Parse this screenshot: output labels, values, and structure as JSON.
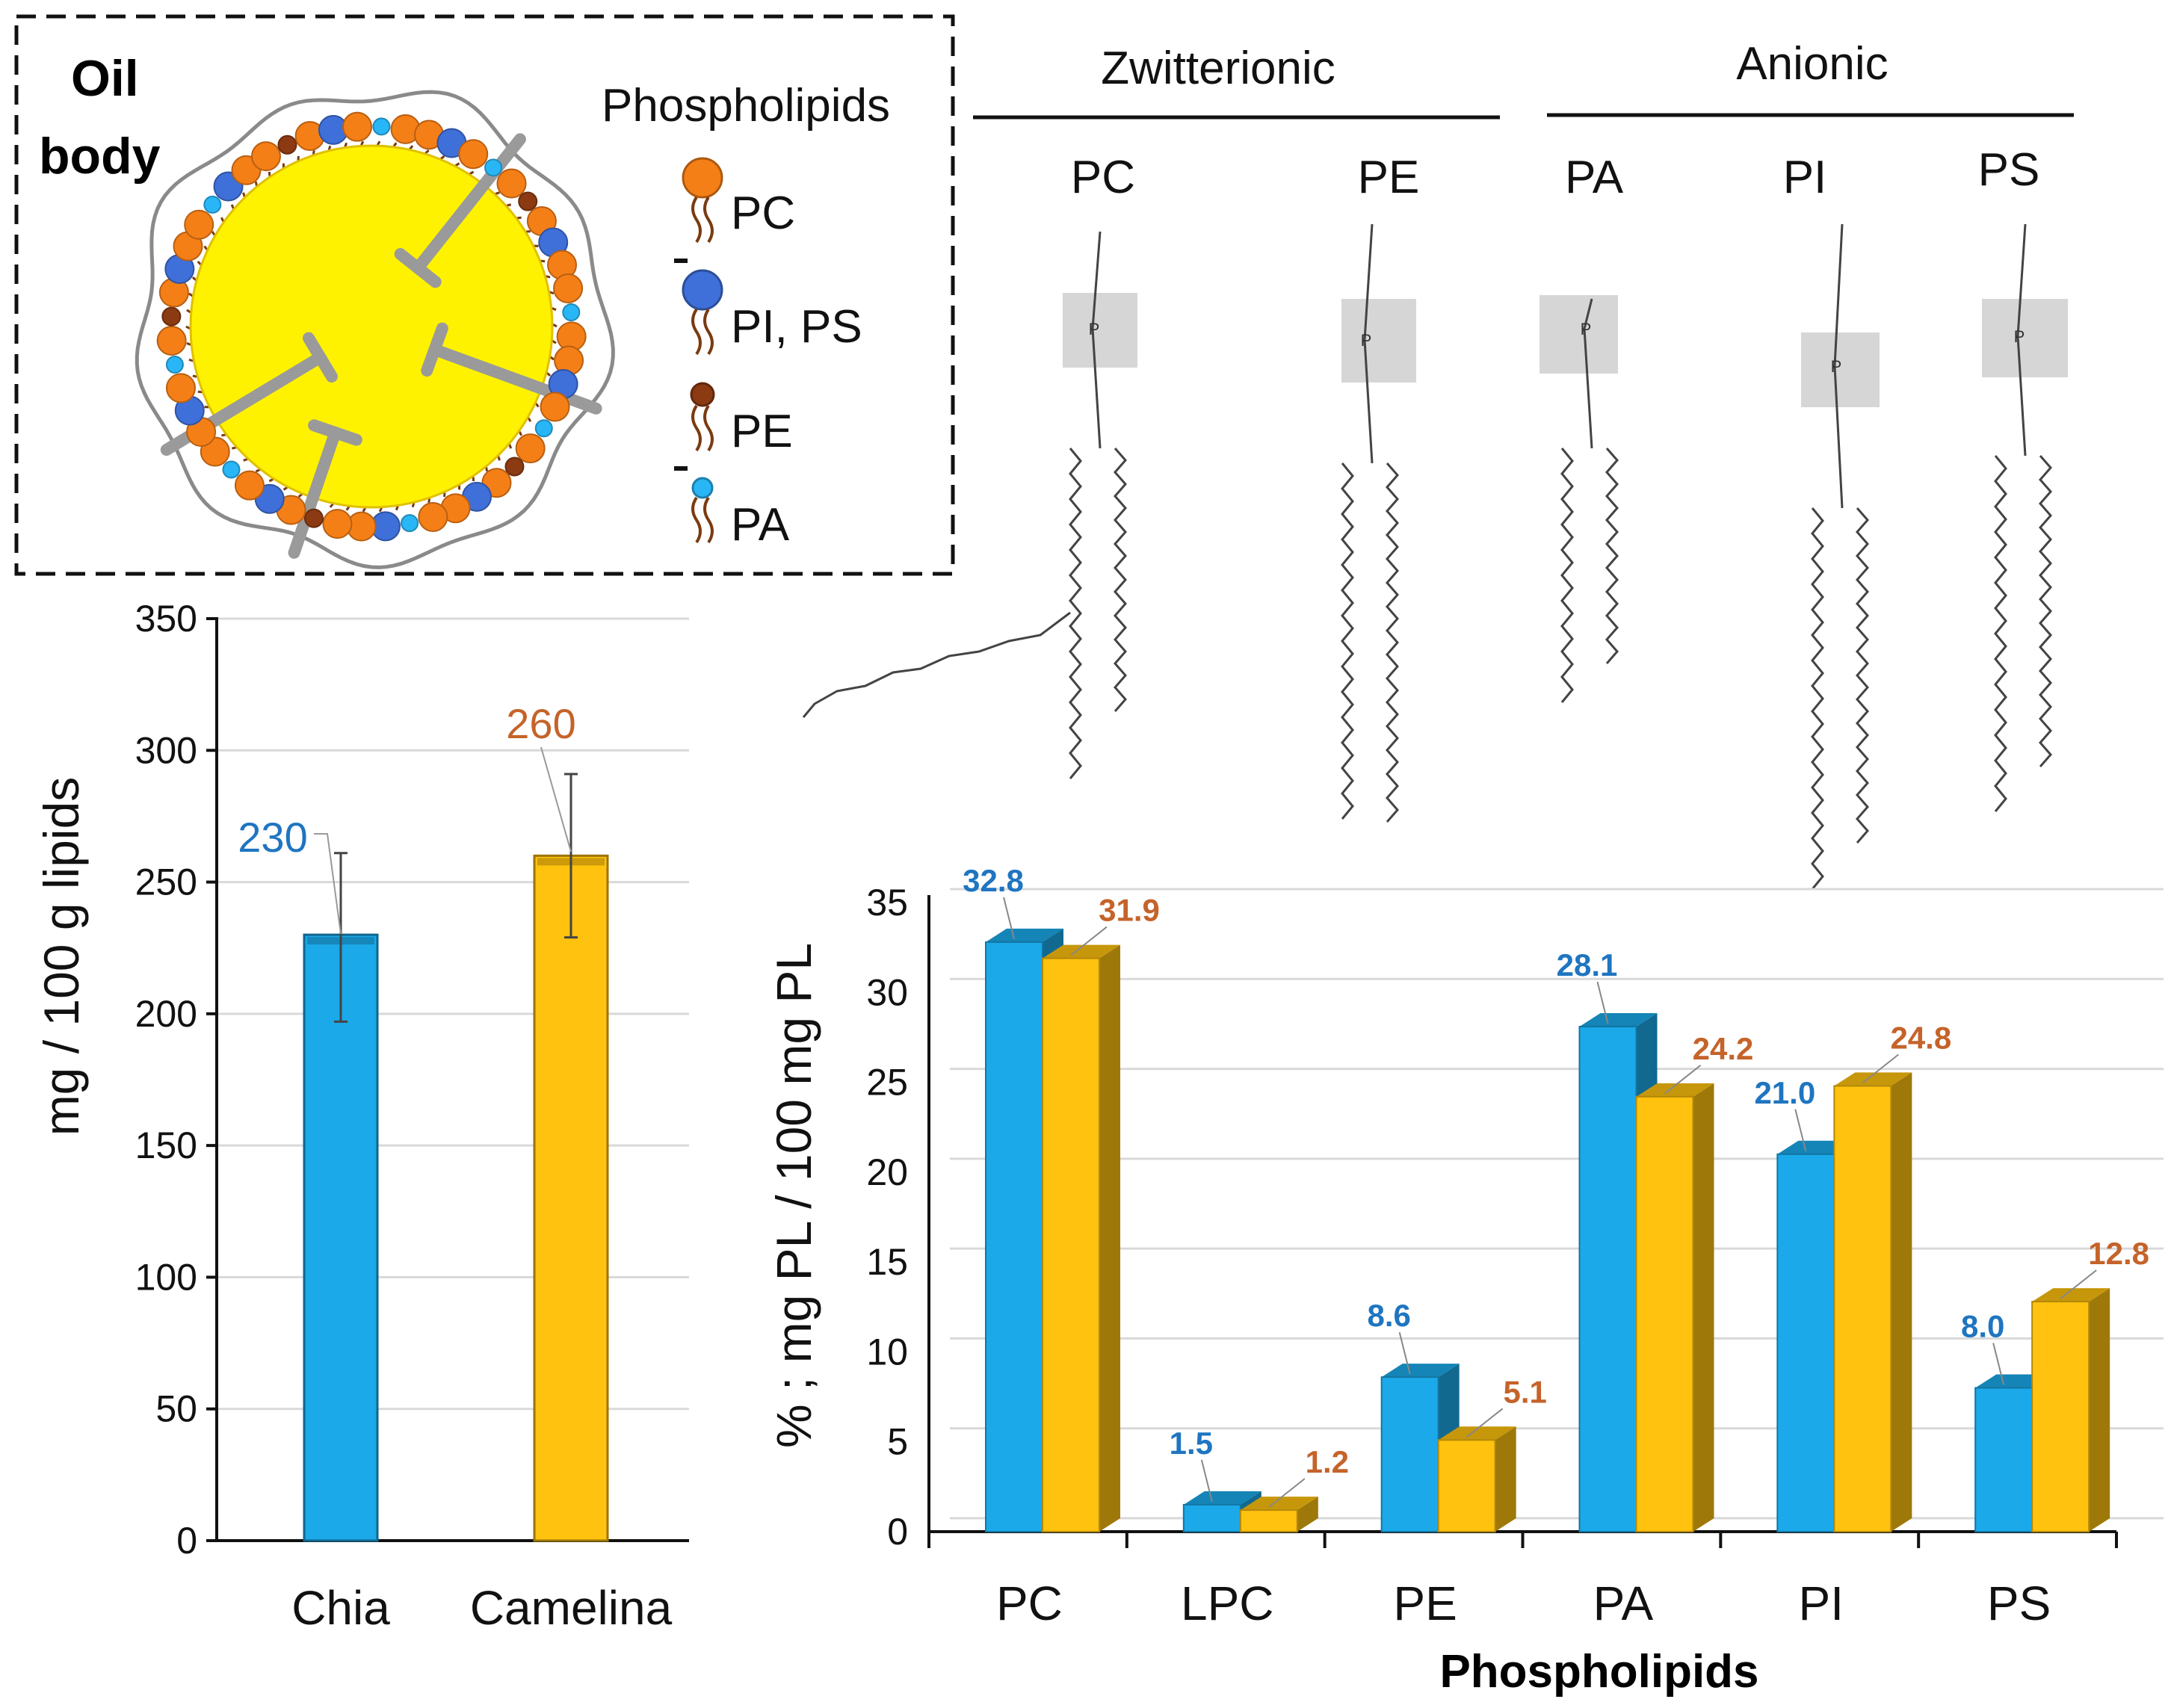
{
  "oil_body": {
    "title_line1": "Oil",
    "title_line2": "body",
    "legend_title": "Phospholipids",
    "legend_items": [
      {
        "label": "PC",
        "color": "#F57F17"
      },
      {
        "label": "PI, PS",
        "color": "#3F6FD8"
      },
      {
        "label": "PE",
        "color": "#8B3A12"
      },
      {
        "label": "PA",
        "color": "#29B6F6"
      }
    ],
    "core_color": "#FFF200"
  },
  "structures": {
    "group_zwitterionic": "Zwitterionic",
    "group_anionic": "Anionic",
    "labels": [
      "PC",
      "PE",
      "PA",
      "PI",
      "PS"
    ]
  },
  "colors": {
    "chia": "#1BA9E9",
    "camelina": "#FFC20E",
    "chia_label": "#1F75C0",
    "camelina_label": "#C5632A"
  },
  "chart_data": [
    {
      "type": "bar",
      "title": "",
      "categories": [
        "Chia",
        "Camelina"
      ],
      "values": [
        230,
        260
      ],
      "data_labels": [
        "230",
        "260"
      ],
      "ylabel": "mg / 100 g lipids",
      "xlabel": "",
      "ylim": [
        0,
        350
      ],
      "yticks": [
        "0",
        "50",
        "100",
        "150",
        "200",
        "250",
        "300",
        "350"
      ],
      "error_bars": [
        [
          197,
          261
        ],
        [
          229,
          291
        ]
      ],
      "grid": true
    },
    {
      "type": "bar",
      "title": "",
      "categories": [
        "PC",
        "LPC",
        "PE",
        "PA",
        "PI",
        "PS"
      ],
      "series": [
        {
          "name": "Chia",
          "values": [
            32.8,
            1.5,
            8.6,
            28.1,
            21.0,
            8.0
          ],
          "labels": [
            "32.8",
            "1.5",
            "8.6",
            "28.1",
            "21.0",
            "8.0"
          ]
        },
        {
          "name": "Camelina",
          "values": [
            31.9,
            1.2,
            5.1,
            24.2,
            24.8,
            12.8
          ],
          "labels": [
            "31.9",
            "1.2",
            "5.1",
            "24.2",
            "24.8",
            "12.8"
          ]
        }
      ],
      "ylabel": "% ; mg PL / 100 mg PL",
      "xlabel": "Phospholipids",
      "ylim": [
        0,
        35
      ],
      "yticks": [
        "0",
        "5",
        "10",
        "15",
        "20",
        "25",
        "30",
        "35"
      ],
      "grid": true
    }
  ]
}
